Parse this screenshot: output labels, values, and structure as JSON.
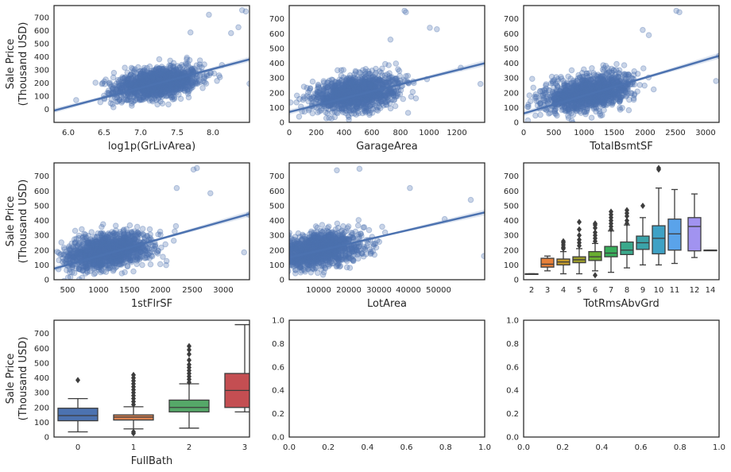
{
  "figure": {
    "ylabel_line1": "Sale Price",
    "ylabel_line2": "(Thousand USD)"
  },
  "colors": {
    "scatter": "#4c72b0",
    "box_palette": [
      "#4c72b0",
      "#dd8452",
      "#55a868",
      "#c44e52",
      "#8172b3",
      "#937860",
      "#da8bc3",
      "#8c8c8c",
      "#ccb974",
      "#64b5cd"
    ],
    "rooms_palette": [
      "#4c72b0",
      "#e6803a",
      "#c49a2a",
      "#9c9d2b",
      "#6aae30",
      "#38ad5a",
      "#3aa98c",
      "#3ba3a9",
      "#3ea1c5",
      "#5aa3ea",
      "#a193f0",
      "#d97ff0",
      "#f067c9"
    ]
  },
  "chart_data": [
    {
      "type": "scatter",
      "xlabel": "log1p(GrLivArea)",
      "xlim": [
        5.8,
        8.45
      ],
      "ylim": [
        -100,
        790
      ],
      "xticks": [
        "6.0",
        "6.5",
        "7.0",
        "7.5",
        "8.0"
      ],
      "yticks": [
        "0",
        "100",
        "200",
        "300",
        "400",
        "500",
        "600",
        "700"
      ],
      "regression": {
        "x0": 5.8,
        "y0": -10,
        "x1": 8.45,
        "y1": 380
      },
      "cloud": {
        "center": [
          7.2,
          170
        ],
        "n": 1400
      },
      "sample_points": [
        [
          8.35,
          755
        ],
        [
          8.4,
          745
        ],
        [
          7.65,
          585
        ],
        [
          8.3,
          625
        ],
        [
          6.1,
          70
        ],
        [
          6.55,
          110
        ],
        [
          8.45,
          195
        ],
        [
          8.2,
          580
        ],
        [
          7.9,
          720
        ]
      ]
    },
    {
      "type": "scatter",
      "xlabel": "GarageArea",
      "xlim": [
        0,
        1390
      ],
      "ylim": [
        0,
        790
      ],
      "xticks": [
        "0",
        "200",
        "400",
        "600",
        "800",
        "1000",
        "1200"
      ],
      "yticks": [
        "0",
        "100",
        "200",
        "300",
        "400",
        "500",
        "600",
        "700"
      ],
      "regression": {
        "x0": 0,
        "y0": 70,
        "x1": 1390,
        "y1": 400
      },
      "cloud": {
        "center": [
          480,
          180
        ],
        "n": 1400
      },
      "sample_points": [
        [
          820,
          755
        ],
        [
          830,
          745
        ],
        [
          1000,
          640
        ],
        [
          1050,
          630
        ],
        [
          1360,
          260
        ],
        [
          720,
          560
        ],
        [
          1220,
          370
        ]
      ]
    },
    {
      "type": "scatter",
      "xlabel": "TotalBsmtSF",
      "xlim": [
        0,
        3200
      ],
      "ylim": [
        0,
        790
      ],
      "xticks": [
        "0",
        "500",
        "1000",
        "1500",
        "2000",
        "2500",
        "3000"
      ],
      "yticks": [
        "0",
        "100",
        "200",
        "300",
        "400",
        "500",
        "600",
        "700"
      ],
      "regression": {
        "x0": 0,
        "y0": 60,
        "x1": 3200,
        "y1": 450
      },
      "cloud": {
        "center": [
          1050,
          180
        ],
        "n": 1400
      },
      "sample_points": [
        [
          2500,
          755
        ],
        [
          2550,
          745
        ],
        [
          3150,
          280
        ],
        [
          3200,
          450
        ],
        [
          2050,
          590
        ],
        [
          1950,
          625
        ]
      ]
    },
    {
      "type": "scatter",
      "xlabel": "1stFlrSF",
      "xlim": [
        330,
        3230
      ],
      "ylim": [
        0,
        790
      ],
      "xticks": [
        "500",
        "1000",
        "1500",
        "2000",
        "2500",
        "3000"
      ],
      "yticks": [
        "0",
        "100",
        "200",
        "300",
        "400",
        "500",
        "600",
        "700"
      ],
      "regression": {
        "x0": 330,
        "y0": 75,
        "x1": 3230,
        "y1": 445
      },
      "cloud": {
        "center": [
          1130,
          180
        ],
        "n": 1400
      },
      "sample_points": [
        [
          2450,
          755
        ],
        [
          2400,
          745
        ],
        [
          3150,
          185
        ],
        [
          3220,
          440
        ],
        [
          2150,
          620
        ],
        [
          2650,
          585
        ]
      ]
    },
    {
      "type": "scatter",
      "xlabel": "LotArea",
      "xlim": [
        1300,
        57500
      ],
      "ylim": [
        0,
        790
      ],
      "xticks": [
        "10000",
        "20000",
        "30000",
        "40000",
        "50000"
      ],
      "yticks": [
        "0",
        "100",
        "200",
        "300",
        "400",
        "500",
        "600",
        "700"
      ],
      "regression": {
        "x0": 1300,
        "y0": 150,
        "x1": 57500,
        "y1": 455
      },
      "cloud": {
        "center": [
          9500,
          180
        ],
        "n": 1400
      },
      "sample_points": [
        [
          15000,
          740
        ],
        [
          21500,
          750
        ],
        [
          36000,
          620
        ],
        [
          53500,
          540
        ],
        [
          57300,
          160
        ],
        [
          46000,
          410
        ]
      ]
    },
    {
      "type": "box",
      "xlabel": "TotRmsAbvGrd",
      "ylim": [
        0,
        790
      ],
      "categories": [
        "2",
        "3",
        "4",
        "5",
        "6",
        "7",
        "8",
        "9",
        "10",
        "11",
        "12",
        "14"
      ],
      "yticks": [
        "0",
        "100",
        "200",
        "300",
        "400",
        "500",
        "600",
        "700"
      ],
      "boxes": [
        {
          "q1": 40,
          "med": 40,
          "q3": 40,
          "wlo": 40,
          "whi": 40,
          "out": []
        },
        {
          "q1": 85,
          "med": 105,
          "q3": 145,
          "wlo": 60,
          "whi": 160,
          "out": []
        },
        {
          "q1": 100,
          "med": 120,
          "q3": 140,
          "wlo": 40,
          "whi": 190,
          "out": [
            210,
            220,
            235,
            250,
            260
          ]
        },
        {
          "q1": 115,
          "med": 135,
          "q3": 155,
          "wlo": 40,
          "whi": 210,
          "out": [
            230,
            250,
            270,
            300,
            340,
            390
          ]
        },
        {
          "q1": 130,
          "med": 155,
          "q3": 190,
          "wlo": 60,
          "whi": 245,
          "out": [
            30,
            260,
            280,
            300,
            320,
            350,
            370,
            380
          ]
        },
        {
          "q1": 155,
          "med": 180,
          "q3": 225,
          "wlo": 50,
          "whi": 330,
          "out": [
            340,
            360,
            380,
            400,
            420,
            440,
            460
          ]
        },
        {
          "q1": 170,
          "med": 200,
          "q3": 255,
          "wlo": 80,
          "whi": 370,
          "out": [
            380,
            400,
            430,
            450,
            470
          ]
        },
        {
          "q1": 205,
          "med": 250,
          "q3": 295,
          "wlo": 100,
          "whi": 420,
          "out": [
            500
          ]
        },
        {
          "q1": 175,
          "med": 280,
          "q3": 365,
          "wlo": 100,
          "whi": 620,
          "out": [
            745,
            755
          ]
        },
        {
          "q1": 200,
          "med": 310,
          "q3": 410,
          "wlo": 110,
          "whi": 610,
          "out": []
        },
        {
          "q1": 195,
          "med": 360,
          "q3": 420,
          "wlo": 150,
          "whi": 580,
          "out": []
        },
        {
          "q1": 200,
          "med": 200,
          "q3": 200,
          "wlo": 200,
          "whi": 200,
          "out": []
        }
      ]
    },
    {
      "type": "box",
      "xlabel": "FullBath",
      "ylim": [
        0,
        790
      ],
      "categories": [
        "0",
        "1",
        "2",
        "3"
      ],
      "yticks": [
        "0",
        "100",
        "200",
        "300",
        "400",
        "500",
        "600",
        "700"
      ],
      "boxes": [
        {
          "q1": 110,
          "med": 145,
          "q3": 195,
          "wlo": 35,
          "whi": 260,
          "out": [
            385
          ]
        },
        {
          "q1": 115,
          "med": 135,
          "q3": 150,
          "wlo": 55,
          "whi": 205,
          "out": [
            25,
            35,
            220,
            240,
            260,
            280,
            300,
            320,
            340,
            360,
            380,
            400,
            420
          ]
        },
        {
          "q1": 170,
          "med": 200,
          "q3": 250,
          "wlo": 60,
          "whi": 360,
          "out": [
            370,
            390,
            410,
            430,
            450,
            470,
            490,
            520,
            560,
            590,
            615
          ]
        },
        {
          "q1": 200,
          "med": 315,
          "q3": 430,
          "wlo": 170,
          "whi": 760,
          "out": []
        }
      ]
    },
    {
      "type": "empty",
      "xlim": [
        0,
        1
      ],
      "ylim": [
        0,
        1
      ],
      "xticks": [
        "0.0",
        "0.2",
        "0.4",
        "0.6",
        "0.8",
        "1.0"
      ],
      "yticks": [
        "0.0",
        "0.2",
        "0.4",
        "0.6",
        "0.8",
        "1.0"
      ]
    },
    {
      "type": "empty",
      "xlim": [
        0,
        1
      ],
      "ylim": [
        0,
        1
      ],
      "xticks": [
        "0.0",
        "0.2",
        "0.4",
        "0.6",
        "0.8",
        "1.0"
      ],
      "yticks": [
        "0.0",
        "0.2",
        "0.4",
        "0.6",
        "0.8",
        "1.0"
      ]
    }
  ]
}
